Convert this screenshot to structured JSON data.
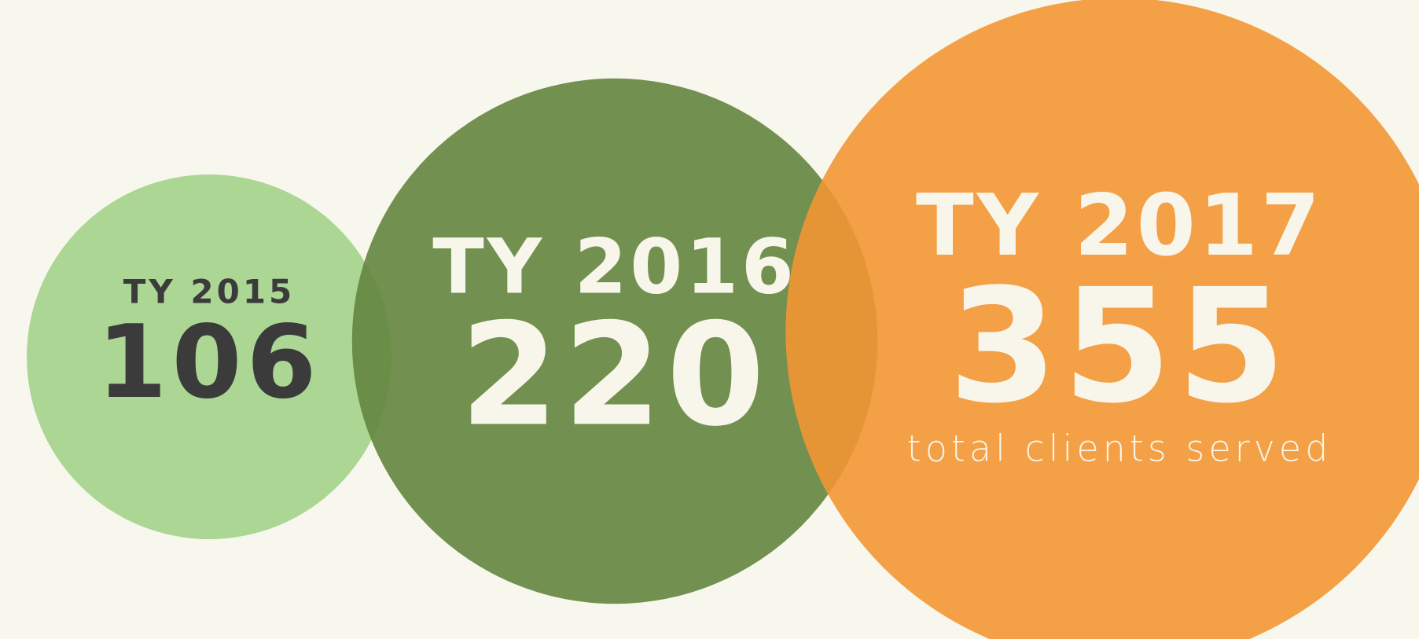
{
  "chart_data": {
    "type": "bubble",
    "categories": [
      "TY 2015",
      "TY 2016",
      "TY 2017"
    ],
    "values": [
      106,
      220,
      355
    ],
    "colors": [
      "#a3d288",
      "#63853f",
      "#f39633"
    ],
    "label_colors": [
      "#3b3b3b",
      "#f8f6ea",
      "#f8f6ea"
    ],
    "annotation": "total clients served"
  }
}
